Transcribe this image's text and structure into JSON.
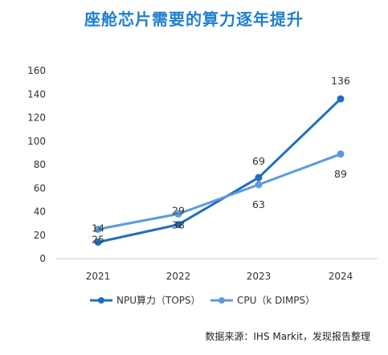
{
  "title": "座舱芯片需要的算力逐年提升",
  "source": "数据来源：IHS Markit，发现报告整理",
  "colors": {
    "npu": "#1f6fbf",
    "cpu": "#5b9bdc",
    "title": "#1e7fd0",
    "axis": "#cccccc"
  },
  "chart_data": {
    "type": "line",
    "title": "座舱芯片需要的算力逐年提升",
    "xlabel": "",
    "ylabel": "",
    "x": [
      "2021",
      "2022",
      "2023",
      "2024"
    ],
    "ylim": [
      0,
      160
    ],
    "yticks": [
      0,
      20,
      40,
      60,
      80,
      100,
      120,
      140,
      160
    ],
    "grid": false,
    "legend_position": "bottom",
    "series": [
      {
        "name": "NPU算力（TOPS）",
        "values": [
          14,
          29,
          69,
          136
        ]
      },
      {
        "name": "CPU（k DIMPS）",
        "values": [
          25,
          38,
          63,
          89
        ]
      }
    ],
    "data_labels": [
      {
        "text": "14",
        "category": "2021",
        "value": 14
      },
      {
        "text": "25",
        "category": "2021",
        "value": 25
      },
      {
        "text": "29",
        "category": "2022",
        "value": 29
      },
      {
        "text": "38",
        "category": "2022",
        "value": 38
      },
      {
        "text": "69",
        "category": "2023",
        "value": 69
      },
      {
        "text": "63",
        "category": "2023",
        "value": 63
      },
      {
        "text": "136",
        "category": "2024",
        "value": 136
      },
      {
        "text": "89",
        "category": "2024",
        "value": 89
      }
    ]
  }
}
